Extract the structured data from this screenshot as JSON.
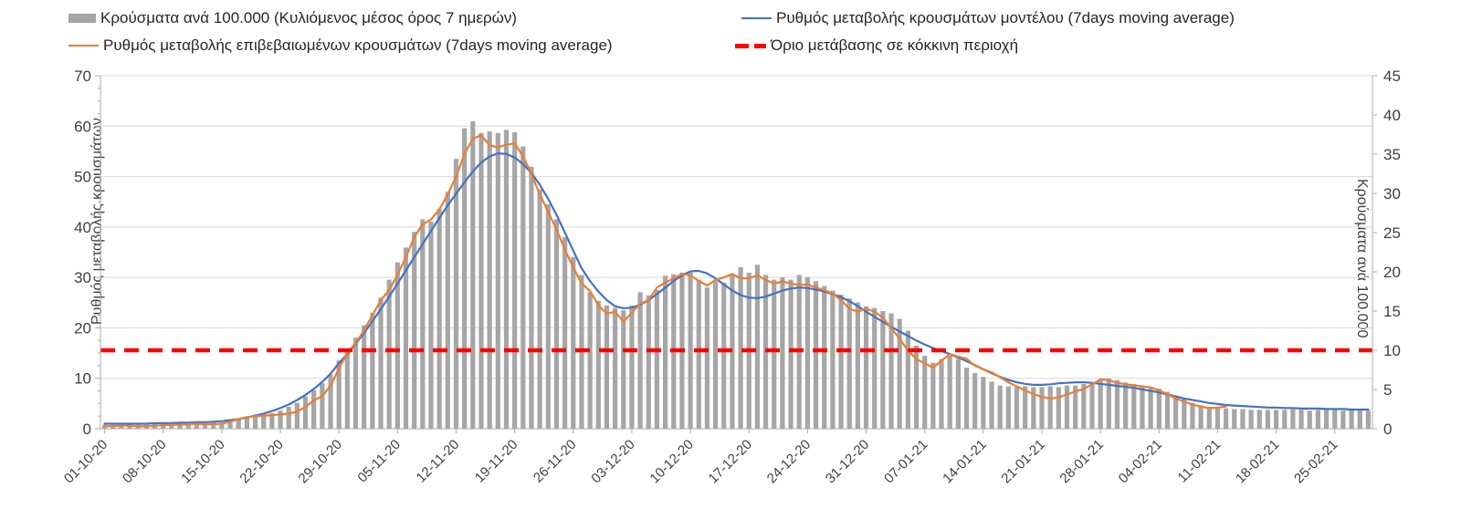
{
  "chart_data": {
    "type": "bar",
    "title": "",
    "legend": [
      {
        "id": "bars",
        "label": "Κρούσματα ανά 100.000 (Κυλιόμενος μέσος όρος 7 ημερών)",
        "swatch": "bar",
        "color": "#A6A6A6"
      },
      {
        "id": "model",
        "label": "Ρυθμός μεταβολής κρουσμάτων μοντέλου (7days moving average)",
        "swatch": "line",
        "color": "#4472C4"
      },
      {
        "id": "confirmed",
        "label": "Ρυθμός μεταβολής επιβεβαιωμένων κρουσμάτων (7days moving average)",
        "swatch": "line",
        "color": "#ED7D31"
      },
      {
        "id": "threshold",
        "label": "Όριο μετάβασης σε κόκκινη περιοχή",
        "swatch": "dash",
        "color": "#FF0000"
      }
    ],
    "axes": {
      "left": {
        "label": "Ρυθμός μεταβολής κρουσμάτων",
        "min": 0,
        "max": 70,
        "ticks": [
          0,
          10,
          20,
          30,
          40,
          50,
          60,
          70
        ],
        "minor_step": 2.5
      },
      "right": {
        "label": "Κρούσματα ανά 100.000",
        "min": 0,
        "max": 45,
        "ticks": [
          0,
          5,
          10,
          15,
          20,
          25,
          30,
          35,
          40,
          45
        ]
      },
      "x": {
        "tick_labels": [
          "01-10-20",
          "08-10-20",
          "15-10-20",
          "22-10-20",
          "29-10-20",
          "05-11-20",
          "12-11-20",
          "19-11-20",
          "26-11-20",
          "03-12-20",
          "10-12-20",
          "17-12-20",
          "24-12-20",
          "31-12-20",
          "07-01-21",
          "14-01-21",
          "21-01-21",
          "28-01-21",
          "04-02-21",
          "11-02-21",
          "18-02-21",
          "25-02-21"
        ],
        "days_per_tick": 7
      }
    },
    "threshold": {
      "value": 10,
      "axis": "right",
      "color": "#FF0000"
    },
    "grid": "horizontal",
    "legend_position": "top",
    "series": {
      "bars": {
        "name": "Κρούσματα ανά 100.000 (Κυλιόμενος μέσος όρος 7 ημερών)",
        "axis": "right",
        "color": "#A6A6A6",
        "values": [
          0.5,
          0.5,
          0.6,
          0.6,
          0.5,
          0.5,
          0.6,
          0.6,
          0.6,
          0.6,
          0.7,
          0.8,
          0.7,
          0.8,
          0.8,
          1.0,
          1.2,
          1.4,
          1.5,
          1.7,
          2.0,
          2.3,
          2.8,
          3.3,
          4.1,
          4.9,
          5.8,
          6.9,
          8.7,
          9.9,
          11.6,
          13.2,
          14.8,
          16.7,
          19.0,
          21.2,
          23.1,
          25.1,
          26.7,
          26.4,
          28.0,
          30.2,
          34.4,
          38.3,
          39.2,
          37.7,
          37.9,
          37.7,
          38.1,
          37.8,
          36.0,
          33.4,
          30.5,
          28.6,
          26.7,
          24.4,
          21.9,
          19.6,
          17.4,
          16.3,
          15.7,
          15.4,
          15.1,
          15.7,
          17.4,
          17.0,
          17.7,
          19.5,
          19.7,
          19.9,
          19.9,
          19.0,
          18.0,
          18.8,
          18.6,
          19.6,
          20.6,
          19.9,
          20.9,
          19.6,
          19.0,
          19.3,
          19.0,
          19.6,
          19.3,
          18.8,
          18.2,
          17.6,
          17.1,
          16.6,
          16.1,
          15.6,
          15.4,
          15.0,
          14.7,
          14.0,
          12.5,
          10.6,
          9.3,
          8.4,
          8.9,
          9.3,
          8.9,
          7.8,
          7.1,
          6.6,
          6.0,
          5.5,
          5.4,
          5.3,
          5.4,
          5.3,
          5.3,
          5.4,
          5.3,
          5.5,
          5.5,
          5.7,
          5.9,
          6.2,
          6.4,
          6.2,
          5.9,
          5.7,
          5.5,
          5.3,
          5.1,
          4.7,
          4.2,
          3.8,
          3.3,
          3.0,
          2.8,
          2.6,
          2.6,
          2.5,
          2.5,
          2.4,
          2.4,
          2.4,
          2.4,
          2.4,
          2.5,
          2.4,
          2.3,
          2.4,
          2.4,
          2.4,
          2.3,
          2.4,
          2.4,
          2.3
        ]
      },
      "confirmed": {
        "name": "Ρυθμός μεταβολής επιβεβαιωμένων κρουσμάτων (7days moving average)",
        "axis": "left",
        "color": "#ED7D31",
        "values": [
          0.5,
          0.5,
          0.6,
          0.6,
          0.5,
          0.5,
          0.6,
          0.7,
          0.8,
          0.8,
          0.9,
          1.0,
          0.9,
          0.9,
          1.0,
          1.4,
          1.9,
          2.3,
          2.5,
          2.6,
          2.7,
          2.8,
          3.0,
          3.4,
          4.3,
          5.6,
          6.5,
          8.5,
          12.0,
          15.0,
          17.0,
          19.5,
          22.5,
          25.5,
          27.5,
          30.5,
          34.0,
          38.0,
          40.5,
          41.5,
          43.5,
          46.5,
          50.0,
          54.5,
          57.5,
          58.2,
          56.2,
          55.8,
          56.3,
          56.6,
          54.0,
          50.5,
          46.5,
          43.0,
          39.5,
          35.5,
          32.0,
          28.8,
          27.3,
          24.5,
          22.8,
          23.2,
          21.2,
          23.0,
          24.8,
          25.5,
          28.0,
          29.0,
          29.8,
          30.7,
          30.4,
          29.3,
          28.4,
          29.5,
          30.0,
          30.7,
          29.8,
          29.8,
          30.4,
          29.5,
          28.8,
          29.2,
          28.8,
          28.5,
          28.6,
          28.0,
          27.5,
          26.8,
          25.5,
          23.8,
          23.2,
          23.8,
          23.2,
          22.0,
          20.0,
          17.8,
          15.5,
          13.8,
          13.0,
          12.1,
          13.5,
          14.8,
          14.3,
          13.9,
          12.5,
          11.8,
          11.2,
          10.2,
          9.2,
          8.4,
          7.6,
          6.9,
          6.3,
          6.0,
          6.2,
          6.8,
          7.4,
          7.9,
          8.8,
          9.8,
          9.6,
          9.1,
          8.8,
          8.6,
          8.4,
          8.2,
          7.6,
          6.8,
          6.0,
          5.4,
          4.8,
          4.4,
          4.1,
          4.2,
          4.4
        ]
      },
      "model": {
        "name": "Ρυθμός μεταβολής κρουσμάτων μοντέλου (7days moving average)",
        "axis": "left",
        "color": "#4472C4",
        "values": [
          1.0,
          1.0,
          1.0,
          1.0,
          1.0,
          1.0,
          1.1,
          1.1,
          1.1,
          1.2,
          1.2,
          1.3,
          1.3,
          1.4,
          1.5,
          1.7,
          1.9,
          2.2,
          2.6,
          3.0,
          3.5,
          4.1,
          4.8,
          5.7,
          6.7,
          7.9,
          9.3,
          10.9,
          13.0,
          14.8,
          16.8,
          19.0,
          21.3,
          23.7,
          26.2,
          28.8,
          31.4,
          34.0,
          36.6,
          39.2,
          41.8,
          44.3,
          46.6,
          48.9,
          51.0,
          52.8,
          54.0,
          54.6,
          54.5,
          53.8,
          52.5,
          50.7,
          48.4,
          45.6,
          42.4,
          38.9,
          35.3,
          31.8,
          29.3,
          27.2,
          25.5,
          24.3,
          23.9,
          24.0,
          24.6,
          25.5,
          26.7,
          28.0,
          29.3,
          30.4,
          31.2,
          31.3,
          30.8,
          29.8,
          28.6,
          27.4,
          26.5,
          26.0,
          25.9,
          26.2,
          26.8,
          27.4,
          27.8,
          28.0,
          27.9,
          27.6,
          27.2,
          26.7,
          26.1,
          25.3,
          24.3,
          23.2,
          22.2,
          21.2,
          20.2,
          19.3,
          18.4,
          17.5,
          16.7,
          16.0,
          15.4,
          14.8,
          14.1,
          13.4,
          12.6,
          11.8,
          11.0,
          10.3,
          9.7,
          9.2,
          8.9,
          8.7,
          8.7,
          8.8,
          9.0,
          9.1,
          9.2,
          9.2,
          9.1,
          8.9,
          8.7,
          8.5,
          8.3,
          8.1,
          7.8,
          7.5,
          7.2,
          6.8,
          6.4,
          6.0,
          5.7,
          5.4,
          5.1,
          4.9,
          4.7,
          4.6,
          4.5,
          4.4,
          4.3,
          4.2,
          4.2,
          4.1,
          4.1,
          4.0,
          4.0,
          4.0,
          3.9,
          3.9,
          3.9,
          3.8,
          3.8,
          3.8
        ]
      }
    },
    "colors": {
      "grid": "#D9D9D9",
      "axis": "#ABABAB",
      "tick_text": "#404040",
      "legend_text": "#262626"
    }
  }
}
